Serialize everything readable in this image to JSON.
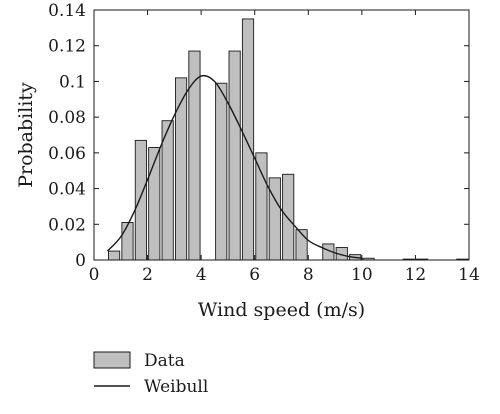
{
  "chart_data": {
    "type": "bar",
    "xlabel": "Wind speed (m/s)",
    "ylabel": "Probability",
    "xlim": [
      0,
      14
    ],
    "ylim": [
      0,
      0.14
    ],
    "xticks": [
      "0",
      "2",
      "4",
      "6",
      "8",
      "10",
      "12",
      "14"
    ],
    "yticks": [
      "0",
      "0.02",
      "0.04",
      "0.06",
      "0.08",
      "0.1",
      "0.12",
      "0.14"
    ],
    "grid": false,
    "legend_position": "bottom-left",
    "bar_width": 0.42,
    "bars": [
      {
        "x": 0.75,
        "y": 0.005
      },
      {
        "x": 1.25,
        "y": 0.021
      },
      {
        "x": 1.75,
        "y": 0.067
      },
      {
        "x": 2.25,
        "y": 0.063
      },
      {
        "x": 2.75,
        "y": 0.078
      },
      {
        "x": 3.25,
        "y": 0.102
      },
      {
        "x": 3.75,
        "y": 0.117
      },
      {
        "x": 4.75,
        "y": 0.099
      },
      {
        "x": 5.25,
        "y": 0.117
      },
      {
        "x": 5.75,
        "y": 0.135
      },
      {
        "x": 6.25,
        "y": 0.06
      },
      {
        "x": 6.75,
        "y": 0.046
      },
      {
        "x": 7.25,
        "y": 0.048
      },
      {
        "x": 7.75,
        "y": 0.017
      },
      {
        "x": 8.75,
        "y": 0.009
      },
      {
        "x": 9.25,
        "y": 0.007
      },
      {
        "x": 9.75,
        "y": 0.003
      },
      {
        "x": 10.25,
        "y": 0.001
      },
      {
        "x": 11.75,
        "y": 0.0005
      },
      {
        "x": 12.25,
        "y": 0.0005
      },
      {
        "x": 13.75,
        "y": 0.0005
      }
    ],
    "curve": {
      "x": [
        0.5,
        1,
        1.5,
        2,
        2.5,
        3,
        3.5,
        4,
        4.5,
        5,
        5.5,
        6,
        6.5,
        7,
        7.5,
        8,
        8.5,
        9,
        9.5,
        10
      ],
      "y": [
        0.005,
        0.013,
        0.027,
        0.045,
        0.064,
        0.081,
        0.095,
        0.103,
        0.1,
        0.088,
        0.073,
        0.057,
        0.041,
        0.028,
        0.019,
        0.011,
        0.007,
        0.004,
        0.002,
        0.001
      ]
    },
    "series": [
      {
        "name": "Data",
        "kind": "bar",
        "color": "#bfbfbf"
      },
      {
        "name": "Weibull",
        "kind": "line",
        "color": "#1a1a1a"
      }
    ]
  }
}
